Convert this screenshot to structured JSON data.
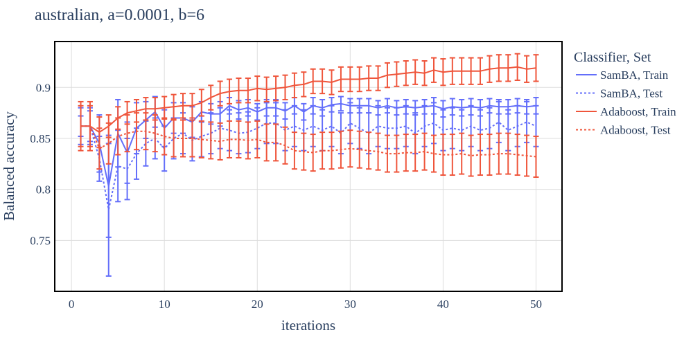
{
  "chart_data": {
    "type": "line",
    "title": "australian, a=0.0001, b=6",
    "xlabel": "iterations",
    "ylabel": "Balanced accuracy",
    "xlim": [
      -1.8,
      52.8
    ],
    "ylim": [
      0.7,
      0.945
    ],
    "x_ticks": [
      0,
      10,
      20,
      30,
      40,
      50
    ],
    "y_ticks": [
      0.75,
      0.8,
      0.85,
      0.9
    ],
    "grid": true,
    "legend": {
      "title": "Classifier, Set",
      "position": "right"
    },
    "x": [
      1,
      2,
      3,
      4,
      5,
      6,
      7,
      8,
      9,
      10,
      11,
      12,
      13,
      14,
      15,
      16,
      17,
      18,
      19,
      20,
      21,
      22,
      23,
      24,
      25,
      26,
      27,
      28,
      29,
      30,
      31,
      32,
      33,
      34,
      35,
      36,
      37,
      38,
      39,
      40,
      41,
      42,
      43,
      44,
      45,
      46,
      47,
      48,
      49,
      50
    ],
    "series": [
      {
        "name": "SamBA, Train",
        "color": "#636efa",
        "dash": "solid",
        "values": [
          0.862,
          0.862,
          0.845,
          0.803,
          0.855,
          0.836,
          0.86,
          0.868,
          0.876,
          0.86,
          0.87,
          0.87,
          0.866,
          0.876,
          0.874,
          0.874,
          0.882,
          0.878,
          0.88,
          0.876,
          0.88,
          0.88,
          0.877,
          0.882,
          0.876,
          0.882,
          0.88,
          0.883,
          0.884,
          0.882,
          0.882,
          0.882,
          0.88,
          0.882,
          0.88,
          0.881,
          0.88,
          0.881,
          0.882,
          0.879,
          0.881,
          0.88,
          0.881,
          0.88,
          0.882,
          0.881,
          0.881,
          0.882,
          0.881,
          0.882
        ],
        "error": [
          0.01,
          0.015,
          0.028,
          0.05,
          0.033,
          0.03,
          0.025,
          0.018,
          0.015,
          0.018,
          0.015,
          0.015,
          0.015,
          0.01,
          0.01,
          0.012,
          0.008,
          0.009,
          0.008,
          0.008,
          0.008,
          0.008,
          0.008,
          0.008,
          0.008,
          0.008,
          0.008,
          0.007,
          0.007,
          0.007,
          0.007,
          0.007,
          0.007,
          0.007,
          0.007,
          0.007,
          0.007,
          0.007,
          0.008,
          0.008,
          0.008,
          0.008,
          0.008,
          0.008,
          0.007,
          0.007,
          0.007,
          0.007,
          0.007,
          0.008
        ]
      },
      {
        "name": "SamBA, Test",
        "color": "#636efa",
        "dash": "dot",
        "values": [
          0.862,
          0.862,
          0.83,
          0.78,
          0.823,
          0.82,
          0.835,
          0.845,
          0.85,
          0.84,
          0.85,
          0.855,
          0.848,
          0.852,
          0.855,
          0.86,
          0.858,
          0.855,
          0.856,
          0.86,
          0.865,
          0.865,
          0.858,
          0.862,
          0.858,
          0.862,
          0.858,
          0.862,
          0.855,
          0.865,
          0.86,
          0.855,
          0.862,
          0.86,
          0.86,
          0.862,
          0.855,
          0.862,
          0.865,
          0.858,
          0.86,
          0.858,
          0.862,
          0.858,
          0.86,
          0.866,
          0.858,
          0.862,
          0.866,
          0.862
        ],
        "error": [
          0.018,
          0.018,
          0.022,
          0.065,
          0.035,
          0.03,
          0.025,
          0.022,
          0.02,
          0.022,
          0.02,
          0.02,
          0.02,
          0.02,
          0.02,
          0.02,
          0.02,
          0.02,
          0.02,
          0.02,
          0.02,
          0.02,
          0.02,
          0.02,
          0.02,
          0.02,
          0.02,
          0.02,
          0.02,
          0.02,
          0.02,
          0.02,
          0.02,
          0.02,
          0.02,
          0.02,
          0.02,
          0.02,
          0.02,
          0.02,
          0.02,
          0.02,
          0.02,
          0.02,
          0.02,
          0.02,
          0.02,
          0.02,
          0.02,
          0.02
        ]
      },
      {
        "name": "Adaboost, Train",
        "color": "#ef553b",
        "dash": "solid",
        "values": [
          0.862,
          0.862,
          0.856,
          0.862,
          0.87,
          0.875,
          0.877,
          0.879,
          0.879,
          0.88,
          0.881,
          0.882,
          0.882,
          0.885,
          0.89,
          0.894,
          0.896,
          0.897,
          0.897,
          0.899,
          0.898,
          0.899,
          0.9,
          0.902,
          0.903,
          0.906,
          0.906,
          0.905,
          0.908,
          0.908,
          0.908,
          0.909,
          0.909,
          0.912,
          0.913,
          0.914,
          0.915,
          0.914,
          0.917,
          0.915,
          0.916,
          0.916,
          0.916,
          0.916,
          0.918,
          0.919,
          0.919,
          0.92,
          0.918,
          0.919
        ],
        "error": [
          0.024,
          0.024,
          0.015,
          0.011,
          0.011,
          0.011,
          0.011,
          0.011,
          0.011,
          0.011,
          0.012,
          0.012,
          0.012,
          0.013,
          0.012,
          0.012,
          0.012,
          0.012,
          0.012,
          0.012,
          0.012,
          0.012,
          0.012,
          0.012,
          0.012,
          0.012,
          0.012,
          0.012,
          0.012,
          0.012,
          0.012,
          0.012,
          0.012,
          0.012,
          0.012,
          0.012,
          0.012,
          0.012,
          0.012,
          0.013,
          0.013,
          0.013,
          0.013,
          0.013,
          0.013,
          0.013,
          0.013,
          0.013,
          0.013,
          0.013
        ]
      },
      {
        "name": "Adaboost, Test",
        "color": "#ef553b",
        "dash": "dot",
        "values": [
          0.862,
          0.862,
          0.84,
          0.845,
          0.852,
          0.855,
          0.857,
          0.857,
          0.855,
          0.852,
          0.85,
          0.85,
          0.85,
          0.849,
          0.848,
          0.847,
          0.849,
          0.849,
          0.848,
          0.849,
          0.846,
          0.846,
          0.843,
          0.838,
          0.837,
          0.836,
          0.838,
          0.838,
          0.839,
          0.84,
          0.839,
          0.838,
          0.837,
          0.835,
          0.835,
          0.836,
          0.836,
          0.837,
          0.835,
          0.834,
          0.834,
          0.835,
          0.833,
          0.834,
          0.834,
          0.835,
          0.835,
          0.834,
          0.833,
          0.832
        ],
        "error": [
          0.02,
          0.02,
          0.02,
          0.02,
          0.018,
          0.018,
          0.018,
          0.018,
          0.018,
          0.018,
          0.018,
          0.018,
          0.018,
          0.018,
          0.018,
          0.018,
          0.018,
          0.018,
          0.018,
          0.018,
          0.018,
          0.018,
          0.018,
          0.018,
          0.018,
          0.018,
          0.018,
          0.018,
          0.018,
          0.018,
          0.018,
          0.018,
          0.018,
          0.018,
          0.018,
          0.018,
          0.018,
          0.018,
          0.018,
          0.02,
          0.02,
          0.02,
          0.02,
          0.02,
          0.02,
          0.02,
          0.02,
          0.02,
          0.02,
          0.02
        ]
      }
    ]
  }
}
